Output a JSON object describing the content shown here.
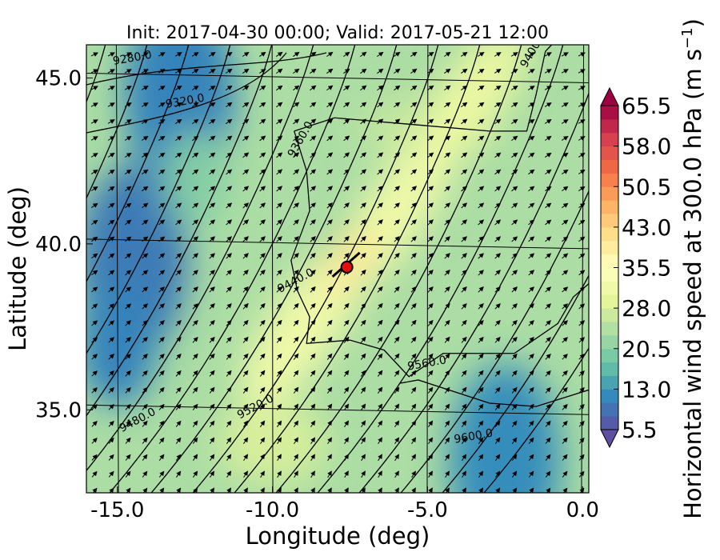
{
  "chart_data": {
    "type": "heatmap",
    "title": "Init: 2017-04-30 00:00; Valid: 2017-05-21 12:00",
    "xlabel": "Longitude (deg)",
    "ylabel": "Latitude (deg)",
    "xlim": [
      -16.0,
      0.2
    ],
    "ylim": [
      32.5,
      46.0
    ],
    "x_ticks": [
      -15.0,
      -10.0,
      -5.0,
      0.0
    ],
    "x_tick_labels": [
      "-15.0",
      "-10.0",
      "-5.0",
      "0.0"
    ],
    "y_ticks": [
      35.0,
      40.0,
      45.0
    ],
    "y_tick_labels": [
      "35.0",
      "40.0",
      "45.0"
    ],
    "colorbar": {
      "label_main": "Horizontal wind speed at 300.0 hPa (m s",
      "label_sup": "−1",
      "label_end": ")",
      "min": 5.5,
      "max": 65.5,
      "ticks": [
        5.5,
        13.0,
        20.5,
        28.0,
        35.5,
        43.0,
        50.5,
        58.0,
        65.5
      ],
      "tick_labels": [
        "5.5",
        "13.0",
        "20.5",
        "28.0",
        "35.5",
        "43.0",
        "50.5",
        "58.0",
        "65.5"
      ],
      "extend": "both",
      "colormap": "Spectral_r",
      "colors": [
        "#5e4fa2",
        "#3288bd",
        "#66c2a5",
        "#abdda4",
        "#e6f598",
        "#ffffbf",
        "#fee08b",
        "#fdae61",
        "#f46d43",
        "#d53e4f",
        "#9e0142"
      ]
    },
    "contour_levels": [
      {
        "label": "9280.0",
        "lon": -14.5,
        "lat": 45.5
      },
      {
        "label": "9320.0",
        "lon": -12.8,
        "lat": 44.2
      },
      {
        "label": "9360.0",
        "lon": -9.0,
        "lat": 43.1
      },
      {
        "label": "9400.0",
        "lon": -1.5,
        "lat": 45.8
      },
      {
        "label": "9440.0",
        "lon": -9.2,
        "lat": 38.8
      },
      {
        "label": "9480.0",
        "lon": -14.3,
        "lat": 34.6
      },
      {
        "label": "9520.0",
        "lon": -10.5,
        "lat": 35.0
      },
      {
        "label": "9560.0",
        "lon": -5.0,
        "lat": 36.3
      },
      {
        "label": "9600.0",
        "lon": -3.5,
        "lat": 34.1
      }
    ],
    "marker": {
      "lon": -7.6,
      "lat": 39.3,
      "color": "#e01010"
    },
    "wind_direction": "south-west to north-east",
    "max_wind_core": {
      "lon": -7.5,
      "lat": 39.5,
      "speed": 40.0
    },
    "low_wind_regions": [
      {
        "lon": -14.5,
        "lat": 39.5,
        "speed": 10.0
      },
      {
        "lon": -13.0,
        "lat": 44.5,
        "speed": 11.0
      },
      {
        "lon": -2.5,
        "lat": 33.5,
        "speed": 12.0
      }
    ]
  }
}
